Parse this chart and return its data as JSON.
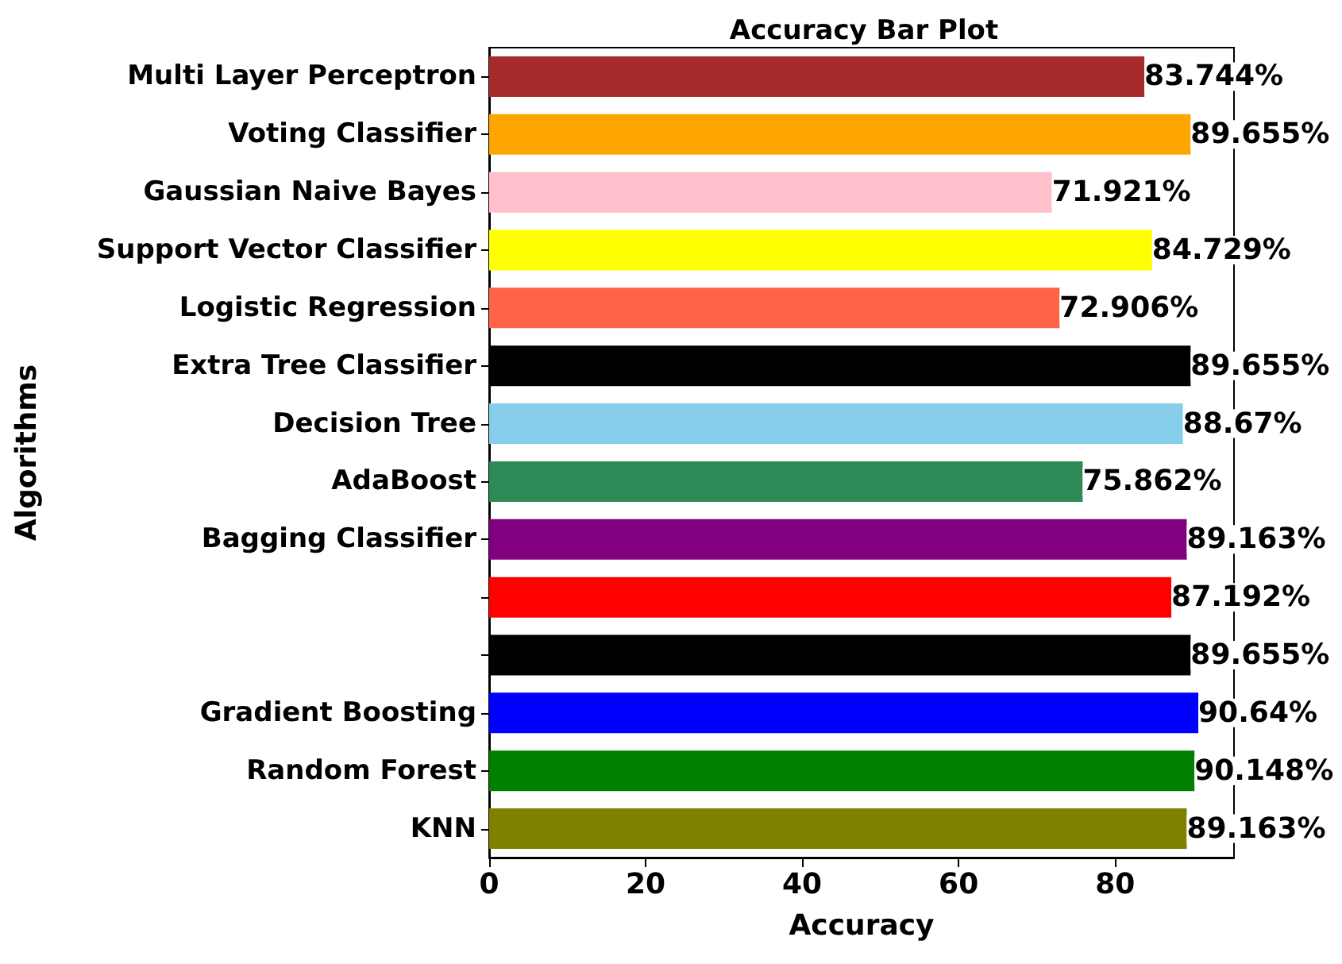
{
  "chart_data": {
    "type": "bar",
    "orientation": "horizontal",
    "title": "Accuracy Bar Plot",
    "xlabel": "Accuracy",
    "ylabel": "Algorithms",
    "categories": [
      "Multi Layer Perceptron",
      "Voting Classifier",
      "Gaussian Naive Bayes",
      "Support Vector Classifier",
      "Logistic Regression",
      "Extra Tree Classifier",
      "Decision Tree",
      "AdaBoost",
      "Bagging Classifier",
      null,
      null,
      "Gradient Boosting",
      "Random Forest",
      "KNN"
    ],
    "values": [
      83.744,
      89.655,
      71.921,
      84.729,
      72.906,
      89.655,
      88.67,
      75.862,
      89.163,
      87.192,
      89.655,
      90.64,
      90.148,
      89.163
    ],
    "value_labels": [
      "83.744%",
      "89.655%",
      "71.921%",
      "84.729%",
      "72.906%",
      "89.655%",
      "88.67%",
      "75.862%",
      "89.163%",
      "87.192%",
      "89.655%",
      "90.64%",
      "90.148%",
      "89.163%"
    ],
    "colors": [
      "#a52a2a",
      "#ffa500",
      "#ffc0cb",
      "#ffff00",
      "#ff6347",
      "#000000",
      "#87ceeb",
      "#2e8b57",
      "#800080",
      "#ff0000",
      "#000000",
      "#0000ff",
      "#008000",
      "#808000"
    ],
    "xlim": [
      0,
      95.2
    ],
    "xticks": [
      0,
      20,
      40,
      60,
      80
    ],
    "grid": false
  }
}
